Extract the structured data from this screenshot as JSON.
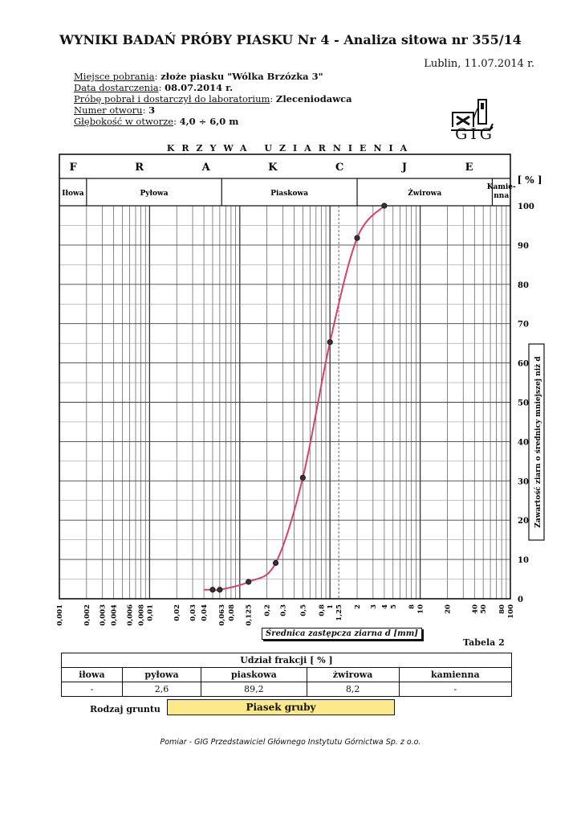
{
  "header": {
    "title": "WYNIKI BADAŃ PRÓBY PIASKU Nr 4 - Analiza sitowa nr 355/14",
    "place_date": "Lublin, 11.07.2014 r."
  },
  "info": [
    {
      "label": "Miejsce pobrania",
      "value": "złoże piasku \"Wólka Brzózka 3\""
    },
    {
      "label": "Data dostarczenia",
      "value": "08.07.2014 r."
    },
    {
      "label": "Próbę pobrał i dostarczył do laboratorium",
      "value": "Zleceniodawca"
    },
    {
      "label": "Numer otworu",
      "value": "3"
    },
    {
      "label": "Głębokość w otworze",
      "value": "4,0 ÷ 6,0 m"
    }
  ],
  "logo": {
    "text": "GIG",
    "icon": "hammer-pick-mine-icon"
  },
  "chart_data": {
    "type": "line",
    "title": "KRZYWA UZIARNIENIA",
    "header_label": "FRAKCJE",
    "fractions": [
      {
        "name": "Iłowa",
        "from": 0.001,
        "to": 0.002
      },
      {
        "name": "Pyłowa",
        "from": 0.002,
        "to": 0.063
      },
      {
        "name": "Piaskowa",
        "from": 0.063,
        "to": 2
      },
      {
        "name": "Żwirowa",
        "from": 2,
        "to": 63
      },
      {
        "name": "Kamie-\nnna",
        "from": 63,
        "to": 100
      }
    ],
    "xlabel": "Średnica zastępcza ziarna d [mm]",
    "ylabel": "Zawartość ziarn o średnicy mniejszej niż d",
    "y_unit_label": "[ % ]",
    "x_scale": "log",
    "xlim": [
      0.001,
      100
    ],
    "ylim": [
      0,
      100
    ],
    "x_tick_labels": [
      "0,001",
      "0,002",
      "0,003",
      "0,004",
      "0,006",
      "0,008",
      "0,01",
      "0,02",
      "0,03",
      "0,04",
      "0,063",
      "0,08",
      "0,125",
      "0,2",
      "0,3",
      "0,5",
      "0,8",
      "1",
      "1,25",
      "2",
      "3",
      "4",
      "5",
      "8",
      "10",
      "20",
      "40",
      "50",
      "80",
      "100"
    ],
    "y_tick_labels": [
      "0",
      "10",
      "20",
      "30",
      "40",
      "50",
      "60",
      "70",
      "80",
      "90",
      "100"
    ],
    "points": [
      {
        "x": 0.05,
        "y": 2.3
      },
      {
        "x": 0.06,
        "y": 2.3
      },
      {
        "x": 0.125,
        "y": 4.3
      },
      {
        "x": 0.25,
        "y": 9.1
      },
      {
        "x": 0.5,
        "y": 30.8
      },
      {
        "x": 1.0,
        "y": 65.3
      },
      {
        "x": 2.0,
        "y": 91.8
      },
      {
        "x": 4.0,
        "y": 100
      }
    ],
    "curve_color": "#d8406a",
    "grid": true
  },
  "table": {
    "label": "Tabela 2",
    "title": "Udział frakcji [ % ]",
    "columns": [
      "iłowa",
      "pyłowa",
      "piaskowa",
      "żwirowa",
      "kamienna"
    ],
    "values": [
      "-",
      "2,6",
      "89,2",
      "8,2",
      "-"
    ]
  },
  "soil": {
    "label": "Rodzaj gruntu",
    "value": "Piasek gruby",
    "color": "#fbe98a"
  },
  "footer": "Pomiar - GIG Przedstawiciel Głównego Instytutu Górnictwa Sp. z o.o."
}
